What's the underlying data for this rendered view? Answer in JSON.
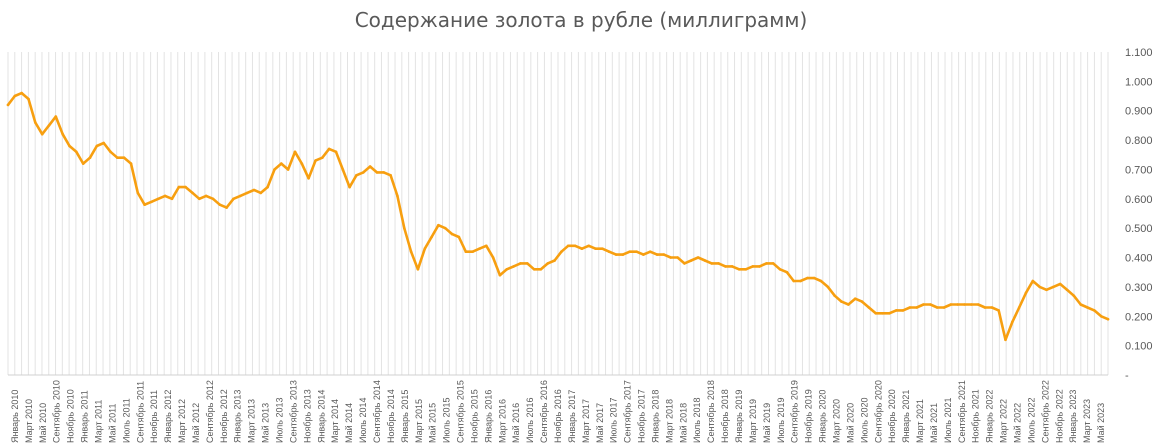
{
  "chart_data": {
    "type": "line",
    "title": "Содержание золота в рубле (миллиграмм)",
    "xlabel": "",
    "ylabel": "",
    "ylim": [
      0,
      1.1
    ],
    "grid": "vertical",
    "legend": "none",
    "line_color": "#f79f10",
    "grid_color": "#e3e3e3",
    "y_tick_labels": [
      "-",
      "0.100",
      "0.200",
      "0.300",
      "0.400",
      "0.500",
      "0.600",
      "0.700",
      "0.800",
      "0.900",
      "1.000",
      "1.100"
    ],
    "x_tick_labels": [
      "Январь 2010",
      "Март 2010",
      "Май 2010",
      "Сентябрь 2010",
      "Ноябрь 2010",
      "Январь 2011",
      "Март 2011",
      "Май 2011",
      "Июль 2011",
      "Сентябрь 2011",
      "Ноябрь 2011",
      "Январь 2012",
      "Март 2012",
      "Май 2012",
      "Сентябрь 2012",
      "Ноябрь 2012",
      "Январь 2013",
      "Март 2013",
      "Май 2013",
      "Июль 2013",
      "Сентябрь 2013",
      "Ноябрь 2013",
      "Январь 2014",
      "Март 2014",
      "Май 2014",
      "Июль 2014",
      "Сентябрь 2014",
      "Ноябрь 2014",
      "Январь 2015",
      "Март 2015",
      "Май 2015",
      "Июль 2015",
      "Сентябрь 2015",
      "Ноябрь 2015",
      "Январь 2016",
      "Март 2016",
      "Май 2016",
      "Июль 2016",
      "Сентябрь 2016",
      "Ноябрь 2016",
      "Январь 2017",
      "Март 2017",
      "Май 2017",
      "Июль 2017",
      "Сентябрь 2017",
      "Ноябрь 2017",
      "Январь 2018",
      "Март 2018",
      "Май 2018",
      "Июль 2018",
      "Сентябрь 2018",
      "Ноябрь 2018",
      "Январь 2019",
      "Март 2019",
      "Май 2019",
      "Июль 2019",
      "Сентябрь 2019",
      "Ноябрь 2019",
      "Январь 2020",
      "Март 2020",
      "Май 2020",
      "Июль 2020",
      "Сентябрь 2020",
      "Ноябрь 2020",
      "Январь 2021",
      "Март 2021",
      "Май 2021",
      "Июль 2021",
      "Сентябрь 2021",
      "Ноябрь 2021",
      "Январь 2022",
      "Март 2022",
      "Май 2022",
      "Июль 2022",
      "Сентябрь 2022",
      "Ноябрь 2022",
      "Январь 2023",
      "Март 2023",
      "Май 2023"
    ],
    "x_start": "2010-01",
    "x_end": "2023-06",
    "series": [
      {
        "x": [
          "2010-01",
          "2010-02",
          "2010-03",
          "2010-04",
          "2010-05",
          "2010-06",
          "2010-07",
          "2010-08",
          "2010-09",
          "2010-10",
          "2010-11",
          "2010-12",
          "2011-01",
          "2011-02",
          "2011-03",
          "2011-04",
          "2011-05",
          "2011-06",
          "2011-07",
          "2011-08",
          "2011-09",
          "2011-10",
          "2011-11",
          "2011-12",
          "2012-01",
          "2012-02",
          "2012-03",
          "2012-04",
          "2012-05",
          "2012-06",
          "2012-07",
          "2012-08",
          "2012-09",
          "2012-10",
          "2012-11",
          "2012-12",
          "2013-01",
          "2013-02",
          "2013-03",
          "2013-04",
          "2013-05",
          "2013-06",
          "2013-07",
          "2013-08",
          "2013-09",
          "2013-10",
          "2013-11",
          "2013-12",
          "2014-01",
          "2014-02",
          "2014-03",
          "2014-04",
          "2014-05",
          "2014-06",
          "2014-07",
          "2014-08",
          "2014-09",
          "2014-10",
          "2014-11",
          "2014-12",
          "2015-01",
          "2015-02",
          "2015-03",
          "2015-04",
          "2015-05",
          "2015-06",
          "2015-07",
          "2015-08",
          "2015-09",
          "2015-10",
          "2015-11",
          "2015-12",
          "2016-01",
          "2016-02",
          "2016-03",
          "2016-04",
          "2016-05",
          "2016-06",
          "2016-07",
          "2016-08",
          "2016-09",
          "2016-10",
          "2016-11",
          "2016-12",
          "2017-01",
          "2017-02",
          "2017-03",
          "2017-04",
          "2017-05",
          "2017-06",
          "2017-07",
          "2017-08",
          "2017-09",
          "2017-10",
          "2017-11",
          "2017-12",
          "2018-01",
          "2018-02",
          "2018-03",
          "2018-04",
          "2018-05",
          "2018-06",
          "2018-07",
          "2018-08",
          "2018-09",
          "2018-10",
          "2018-11",
          "2018-12",
          "2019-01",
          "2019-02",
          "2019-03",
          "2019-04",
          "2019-05",
          "2019-06",
          "2019-07",
          "2019-08",
          "2019-09",
          "2019-10",
          "2019-11",
          "2019-12",
          "2020-01",
          "2020-02",
          "2020-03",
          "2020-04",
          "2020-05",
          "2020-06",
          "2020-07",
          "2020-08",
          "2020-09",
          "2020-10",
          "2020-11",
          "2020-12",
          "2021-01",
          "2021-02",
          "2021-03",
          "2021-04",
          "2021-05",
          "2021-06",
          "2021-07",
          "2021-08",
          "2021-09",
          "2021-10",
          "2021-11",
          "2021-12",
          "2022-01",
          "2022-02",
          "2022-03",
          "2022-04",
          "2022-05",
          "2022-06",
          "2022-07",
          "2022-08",
          "2022-09",
          "2022-10",
          "2022-11",
          "2022-12",
          "2023-01",
          "2023-02",
          "2023-03",
          "2023-04",
          "2023-05",
          "2023-06"
        ],
        "values": [
          0.92,
          0.95,
          0.96,
          0.94,
          0.86,
          0.82,
          0.85,
          0.88,
          0.82,
          0.78,
          0.76,
          0.72,
          0.74,
          0.78,
          0.79,
          0.76,
          0.74,
          0.74,
          0.72,
          0.62,
          0.58,
          0.59,
          0.6,
          0.61,
          0.6,
          0.64,
          0.64,
          0.62,
          0.6,
          0.61,
          0.6,
          0.58,
          0.57,
          0.6,
          0.61,
          0.62,
          0.63,
          0.62,
          0.64,
          0.7,
          0.72,
          0.7,
          0.76,
          0.72,
          0.67,
          0.73,
          0.74,
          0.77,
          0.76,
          0.7,
          0.64,
          0.68,
          0.69,
          0.71,
          0.69,
          0.69,
          0.68,
          0.61,
          0.5,
          0.42,
          0.36,
          0.43,
          0.47,
          0.51,
          0.5,
          0.48,
          0.47,
          0.42,
          0.42,
          0.43,
          0.44,
          0.4,
          0.34,
          0.36,
          0.37,
          0.38,
          0.38,
          0.36,
          0.36,
          0.38,
          0.39,
          0.42,
          0.44,
          0.44,
          0.43,
          0.44,
          0.43,
          0.43,
          0.42,
          0.41,
          0.41,
          0.42,
          0.42,
          0.41,
          0.42,
          0.41,
          0.41,
          0.4,
          0.4,
          0.38,
          0.39,
          0.4,
          0.39,
          0.38,
          0.38,
          0.37,
          0.37,
          0.36,
          0.36,
          0.37,
          0.37,
          0.38,
          0.38,
          0.36,
          0.35,
          0.32,
          0.32,
          0.33,
          0.33,
          0.32,
          0.3,
          0.27,
          0.25,
          0.24,
          0.26,
          0.25,
          0.23,
          0.21,
          0.21,
          0.21,
          0.22,
          0.22,
          0.23,
          0.23,
          0.24,
          0.24,
          0.23,
          0.23,
          0.24,
          0.24,
          0.24,
          0.24,
          0.24,
          0.23,
          0.23,
          0.22,
          0.12,
          0.18,
          0.23,
          0.28,
          0.32,
          0.3,
          0.29,
          0.3,
          0.31,
          0.29,
          0.27,
          0.24,
          0.23,
          0.22,
          0.2,
          0.19
        ]
      }
    ]
  }
}
